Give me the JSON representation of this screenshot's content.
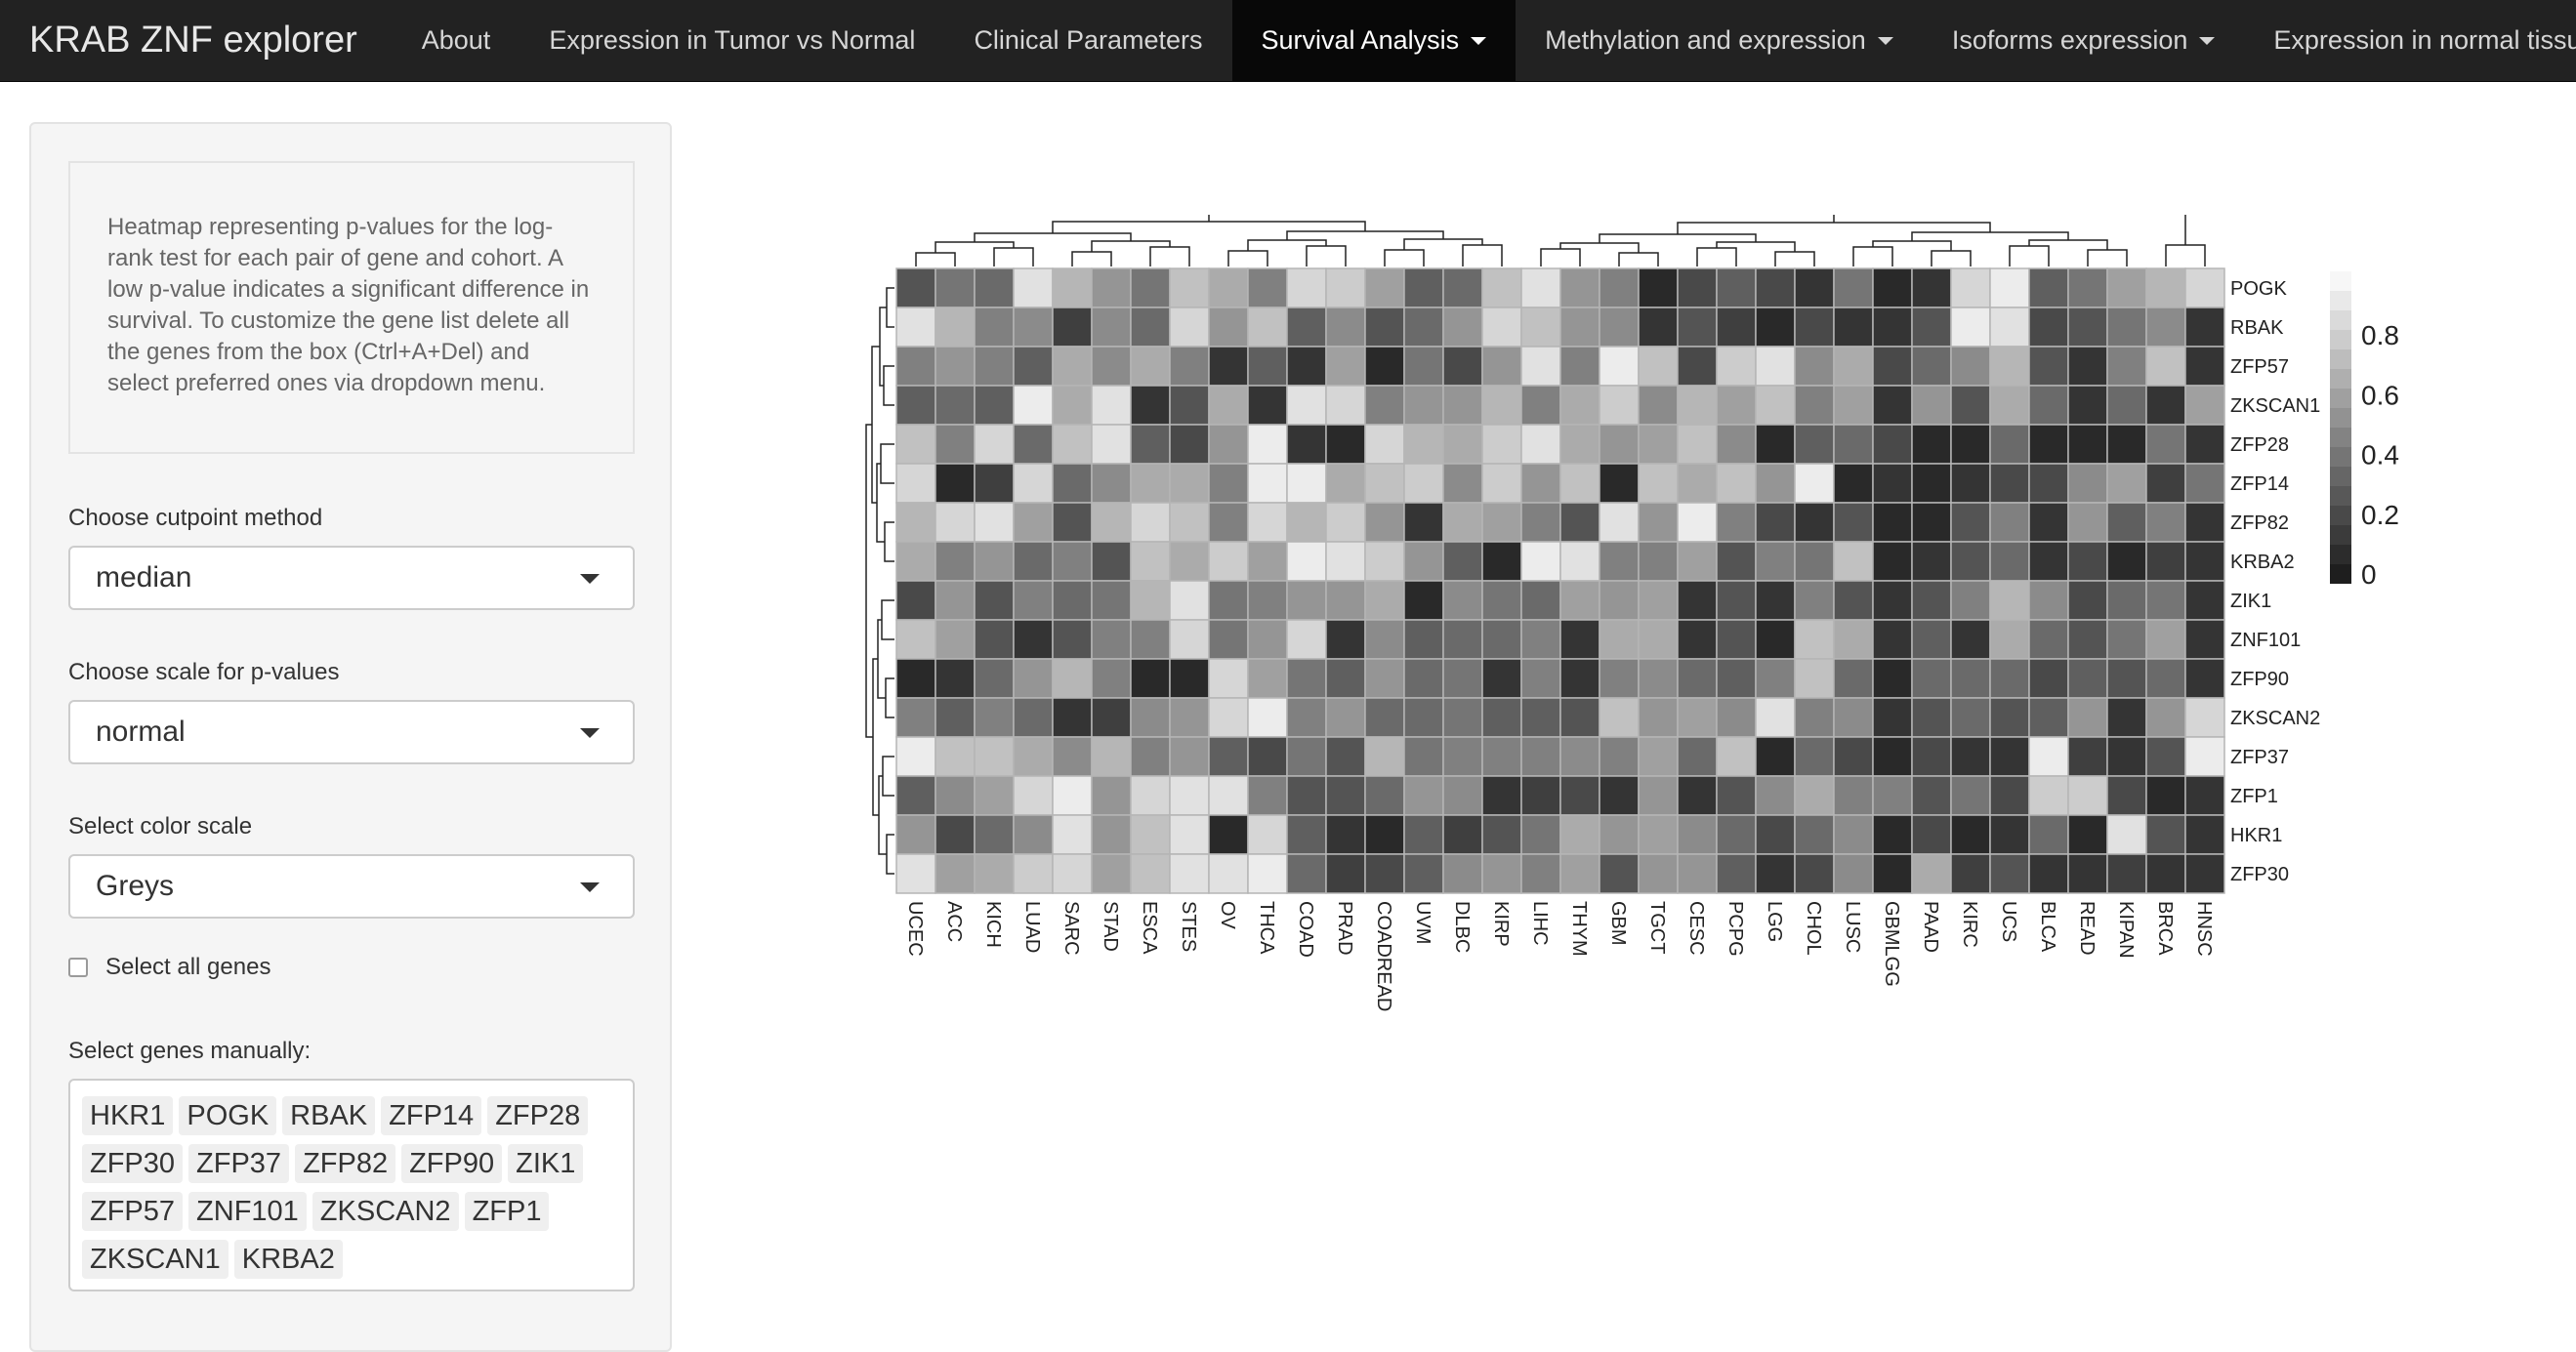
{
  "navbar": {
    "brand": "KRAB ZNF explorer",
    "items": [
      {
        "label": "About",
        "dropdown": false,
        "active": false
      },
      {
        "label": "Expression in Tumor vs Normal",
        "dropdown": false,
        "active": false
      },
      {
        "label": "Clinical Parameters",
        "dropdown": false,
        "active": false
      },
      {
        "label": "Survival Analysis",
        "dropdown": true,
        "active": true
      },
      {
        "label": "Methylation and expression",
        "dropdown": true,
        "active": false
      },
      {
        "label": "Isoforms expression",
        "dropdown": true,
        "active": false
      },
      {
        "label": "Expression in normal tissue",
        "dropdown": true,
        "active": false
      }
    ]
  },
  "sidebar": {
    "help_text": "Heatmap representing p-values for the log-rank test for each pair of gene and cohort. A low p-value indicates a significant difference in survival. To customize the gene list delete all the genes from the box (Ctrl+A+Del) and select preferred ones via dropdown menu.",
    "cutpoint": {
      "label": "Choose cutpoint method",
      "value": "median"
    },
    "scale": {
      "label": "Choose scale for p-values",
      "value": "normal"
    },
    "color_scale": {
      "label": "Select color scale",
      "value": "Greys"
    },
    "select_all": {
      "label": "Select all genes",
      "checked": false
    },
    "genes_manual": {
      "label": "Select genes manually:",
      "tags": [
        "HKR1",
        "POGK",
        "RBAK",
        "ZFP14",
        "ZFP28",
        "ZFP30",
        "ZFP37",
        "ZFP82",
        "ZFP90",
        "ZIK1",
        "ZFP57",
        "ZNF101",
        "ZKSCAN2",
        "ZFP1",
        "ZKSCAN1",
        "KRBA2"
      ]
    }
  },
  "chart_data": {
    "type": "heatmap",
    "title": "",
    "colorscale": "Greys",
    "low_color": "#1e1e1e",
    "high_color": "#f7f7f7",
    "legend": {
      "ticks": [
        "0.8",
        "0.6",
        "0.4",
        "0.2",
        "0"
      ],
      "tick_values": [
        0.8,
        0.6,
        0.4,
        0.2,
        0.0
      ],
      "placement": "right"
    },
    "rows": [
      "POGK",
      "RBAK",
      "ZFP57",
      "ZKSCAN1",
      "ZFP28",
      "ZFP14",
      "ZFP82",
      "KRBA2",
      "ZIK1",
      "ZNF101",
      "ZFP90",
      "ZKSCAN2",
      "ZFP37",
      "ZFP1",
      "HKR1",
      "ZFP30"
    ],
    "columns": [
      "UCEC",
      "ACC",
      "KICH",
      "LUAD",
      "SARC",
      "STAD",
      "ESCA",
      "STES",
      "OV",
      "THCA",
      "COAD",
      "PRAD",
      "COADREAD",
      "UVM",
      "DLBC",
      "KIRP",
      "LIHC",
      "THYM",
      "GBM",
      "TGCT",
      "CESC",
      "PCPG",
      "LGG",
      "CHOL",
      "LUSC",
      "GBMLGG",
      "PAAD",
      "KIRC",
      "UCS",
      "BLCA",
      "READ",
      "KIPAN",
      "BRCA",
      "HNSC"
    ],
    "values": [
      [
        0.25,
        0.4,
        0.35,
        0.9,
        0.7,
        0.55,
        0.4,
        0.75,
        0.65,
        0.45,
        0.85,
        0.8,
        0.6,
        0.3,
        0.35,
        0.75,
        0.9,
        0.55,
        0.45,
        0.05,
        0.2,
        0.3,
        0.2,
        0.1,
        0.4,
        0.05,
        0.1,
        0.85,
        0.95,
        0.3,
        0.4,
        0.6,
        0.7,
        0.85
      ],
      [
        0.9,
        0.7,
        0.45,
        0.5,
        0.15,
        0.5,
        0.35,
        0.85,
        0.55,
        0.75,
        0.3,
        0.5,
        0.25,
        0.35,
        0.55,
        0.85,
        0.75,
        0.55,
        0.5,
        0.1,
        0.25,
        0.15,
        0.05,
        0.2,
        0.1,
        0.1,
        0.25,
        0.95,
        0.9,
        0.2,
        0.25,
        0.4,
        0.5,
        0.1
      ],
      [
        0.45,
        0.55,
        0.45,
        0.3,
        0.65,
        0.5,
        0.65,
        0.45,
        0.1,
        0.3,
        0.1,
        0.6,
        0.05,
        0.4,
        0.2,
        0.55,
        0.9,
        0.45,
        0.95,
        0.75,
        0.2,
        0.8,
        0.9,
        0.5,
        0.65,
        0.2,
        0.35,
        0.5,
        0.7,
        0.25,
        0.1,
        0.45,
        0.75,
        0.1
      ],
      [
        0.3,
        0.35,
        0.3,
        0.95,
        0.65,
        0.9,
        0.1,
        0.25,
        0.65,
        0.1,
        0.9,
        0.85,
        0.45,
        0.55,
        0.55,
        0.7,
        0.45,
        0.65,
        0.8,
        0.5,
        0.7,
        0.6,
        0.75,
        0.45,
        0.6,
        0.1,
        0.55,
        0.25,
        0.65,
        0.35,
        0.1,
        0.35,
        0.1,
        0.6
      ],
      [
        0.75,
        0.45,
        0.85,
        0.35,
        0.75,
        0.9,
        0.3,
        0.2,
        0.55,
        0.95,
        0.1,
        0.05,
        0.85,
        0.7,
        0.65,
        0.8,
        0.9,
        0.65,
        0.55,
        0.6,
        0.75,
        0.5,
        0.05,
        0.3,
        0.35,
        0.2,
        0.05,
        0.05,
        0.35,
        0.05,
        0.05,
        0.05,
        0.4,
        0.1
      ],
      [
        0.85,
        0.05,
        0.15,
        0.85,
        0.35,
        0.5,
        0.65,
        0.65,
        0.45,
        0.95,
        0.95,
        0.65,
        0.75,
        0.8,
        0.5,
        0.8,
        0.55,
        0.75,
        0.05,
        0.75,
        0.65,
        0.75,
        0.55,
        0.95,
        0.05,
        0.1,
        0.05,
        0.1,
        0.2,
        0.2,
        0.5,
        0.6,
        0.15,
        0.4
      ],
      [
        0.7,
        0.85,
        0.9,
        0.6,
        0.25,
        0.7,
        0.85,
        0.75,
        0.45,
        0.85,
        0.7,
        0.8,
        0.55,
        0.1,
        0.65,
        0.6,
        0.45,
        0.25,
        0.9,
        0.55,
        0.95,
        0.45,
        0.2,
        0.1,
        0.25,
        0.05,
        0.05,
        0.25,
        0.45,
        0.1,
        0.55,
        0.3,
        0.45,
        0.1
      ],
      [
        0.65,
        0.45,
        0.55,
        0.35,
        0.45,
        0.25,
        0.75,
        0.65,
        0.8,
        0.6,
        0.95,
        0.9,
        0.8,
        0.55,
        0.3,
        0.05,
        0.95,
        0.9,
        0.45,
        0.45,
        0.6,
        0.25,
        0.45,
        0.4,
        0.75,
        0.05,
        0.1,
        0.25,
        0.35,
        0.1,
        0.2,
        0.05,
        0.15,
        0.1
      ],
      [
        0.2,
        0.55,
        0.25,
        0.45,
        0.35,
        0.4,
        0.7,
        0.9,
        0.4,
        0.45,
        0.55,
        0.55,
        0.65,
        0.05,
        0.5,
        0.4,
        0.35,
        0.6,
        0.55,
        0.6,
        0.1,
        0.25,
        0.1,
        0.45,
        0.25,
        0.1,
        0.25,
        0.45,
        0.7,
        0.5,
        0.2,
        0.35,
        0.4,
        0.1
      ],
      [
        0.75,
        0.6,
        0.25,
        0.1,
        0.25,
        0.45,
        0.45,
        0.85,
        0.4,
        0.55,
        0.85,
        0.1,
        0.5,
        0.3,
        0.35,
        0.35,
        0.45,
        0.1,
        0.65,
        0.65,
        0.1,
        0.25,
        0.05,
        0.75,
        0.65,
        0.1,
        0.3,
        0.1,
        0.65,
        0.35,
        0.25,
        0.4,
        0.6,
        0.1
      ],
      [
        0.05,
        0.1,
        0.35,
        0.55,
        0.7,
        0.45,
        0.05,
        0.05,
        0.85,
        0.6,
        0.4,
        0.3,
        0.55,
        0.35,
        0.4,
        0.1,
        0.45,
        0.1,
        0.45,
        0.5,
        0.35,
        0.3,
        0.45,
        0.75,
        0.35,
        0.05,
        0.35,
        0.35,
        0.35,
        0.2,
        0.3,
        0.25,
        0.35,
        0.1
      ],
      [
        0.45,
        0.3,
        0.45,
        0.35,
        0.1,
        0.15,
        0.5,
        0.55,
        0.85,
        0.95,
        0.45,
        0.55,
        0.35,
        0.35,
        0.4,
        0.3,
        0.3,
        0.25,
        0.75,
        0.55,
        0.6,
        0.5,
        0.9,
        0.45,
        0.5,
        0.1,
        0.25,
        0.35,
        0.25,
        0.3,
        0.55,
        0.1,
        0.55,
        0.85
      ],
      [
        0.95,
        0.75,
        0.75,
        0.65,
        0.5,
        0.7,
        0.45,
        0.55,
        0.3,
        0.2,
        0.4,
        0.25,
        0.7,
        0.4,
        0.45,
        0.45,
        0.45,
        0.5,
        0.45,
        0.6,
        0.35,
        0.75,
        0.05,
        0.35,
        0.2,
        0.05,
        0.2,
        0.1,
        0.1,
        0.95,
        0.15,
        0.1,
        0.25,
        0.95
      ],
      [
        0.3,
        0.5,
        0.6,
        0.85,
        0.95,
        0.55,
        0.85,
        0.9,
        0.9,
        0.45,
        0.25,
        0.25,
        0.35,
        0.55,
        0.5,
        0.1,
        0.15,
        0.2,
        0.1,
        0.55,
        0.1,
        0.25,
        0.5,
        0.65,
        0.45,
        0.45,
        0.25,
        0.4,
        0.2,
        0.8,
        0.8,
        0.2,
        0.05,
        0.1
      ],
      [
        0.55,
        0.2,
        0.35,
        0.5,
        0.9,
        0.55,
        0.75,
        0.9,
        0.05,
        0.85,
        0.3,
        0.1,
        0.05,
        0.3,
        0.15,
        0.25,
        0.4,
        0.65,
        0.55,
        0.6,
        0.5,
        0.35,
        0.2,
        0.35,
        0.5,
        0.05,
        0.2,
        0.05,
        0.1,
        0.35,
        0.05,
        0.9,
        0.25,
        0.1
      ],
      [
        0.9,
        0.6,
        0.65,
        0.8,
        0.85,
        0.6,
        0.75,
        0.9,
        0.9,
        0.95,
        0.35,
        0.15,
        0.2,
        0.3,
        0.5,
        0.55,
        0.45,
        0.6,
        0.25,
        0.55,
        0.55,
        0.3,
        0.1,
        0.2,
        0.5,
        0.05,
        0.65,
        0.15,
        0.25,
        0.1,
        0.1,
        0.15,
        0.1,
        0.1
      ]
    ]
  }
}
